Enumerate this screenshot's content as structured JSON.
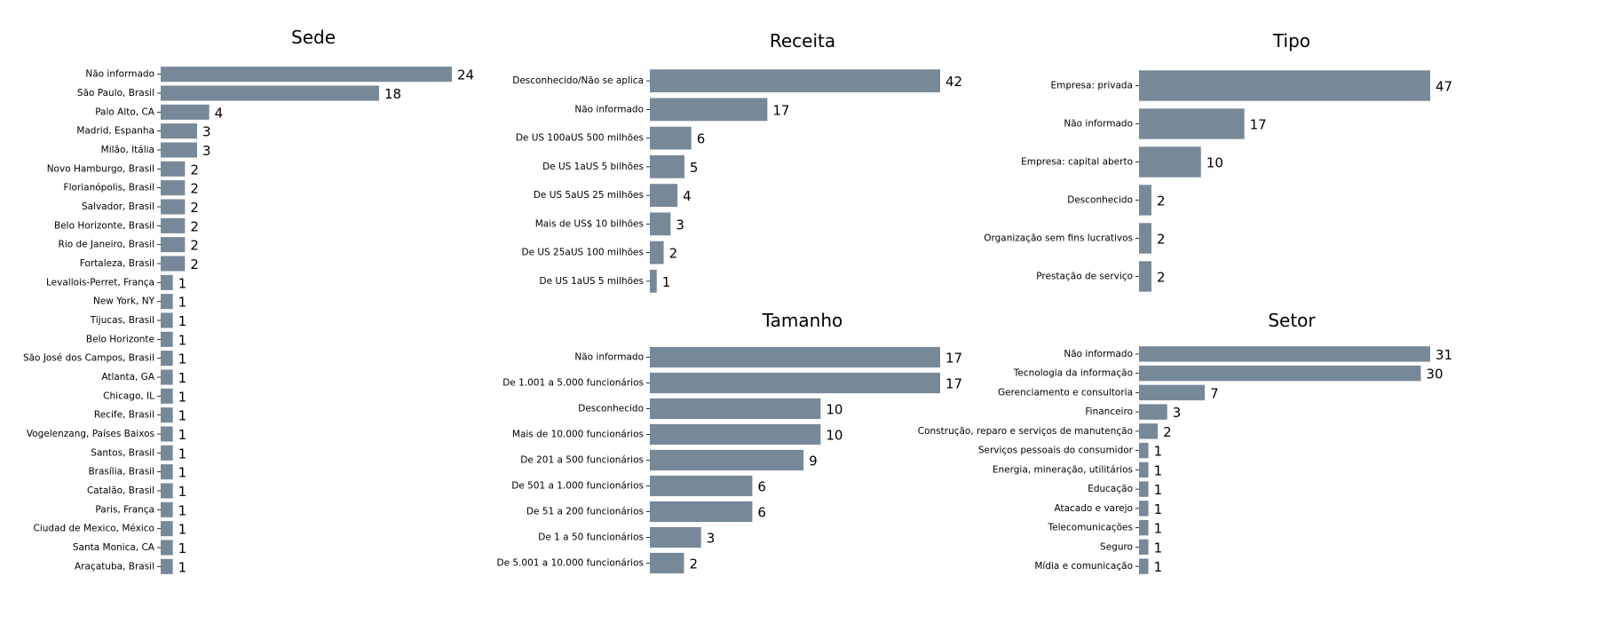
{
  "style": {
    "bar_color": "#778899",
    "text_color": "#000000",
    "background": "#ffffff"
  },
  "chart_data": [
    {
      "type": "bar",
      "orientation": "horizontal",
      "title": "Sede",
      "categories": [
        "Não informado",
        "São Paulo, Brasil",
        "Palo Alto, CA",
        "Madrid, Espanha",
        "Milão, Itália",
        "Novo Hamburgo, Brasil",
        "Florianópolis, Brasil",
        "Salvador, Brasil",
        "Belo Horizonte, Brasil",
        "Rio de Janeiro, Brasil",
        "Fortaleza, Brasil",
        "Levallois-Perret, França",
        "New York, NY",
        "Tijucas, Brasil",
        "Belo Horizonte",
        "São José dos Campos, Brasil",
        "Atlanta, GA",
        "Chicago, IL",
        "Recife, Brasil",
        "Vogelenzang, Países Baixos",
        "Santos, Brasil",
        "Brasília, Brasil",
        "Catalão, Brasil",
        "Paris, França",
        "Ciudad de Mexico, México",
        "Santa Monica, CA",
        "Araçatuba, Brasil"
      ],
      "values": [
        24,
        18,
        4,
        3,
        3,
        2,
        2,
        2,
        2,
        2,
        2,
        1,
        1,
        1,
        1,
        1,
        1,
        1,
        1,
        1,
        1,
        1,
        1,
        1,
        1,
        1,
        1
      ],
      "xlim": [
        0,
        24
      ],
      "data_labels": true,
      "x_axis_visible": false
    },
    {
      "type": "bar",
      "orientation": "horizontal",
      "title": "Receita",
      "categories": [
        "Desconhecido/Não se aplica",
        "Não informado",
        "De US 100aUS 500 milhões",
        "De US 1aUS 5 bilhões",
        "De US 5aUS 25 milhões",
        "Mais de US$ 10 bilhões",
        "De US 25aUS 100 milhões",
        "De US 1aUS 5 milhões"
      ],
      "values": [
        42,
        17,
        6,
        5,
        4,
        3,
        2,
        1
      ],
      "xlim": [
        0,
        42
      ],
      "data_labels": true,
      "x_axis_visible": false
    },
    {
      "type": "bar",
      "orientation": "horizontal",
      "title": "Tipo",
      "categories": [
        "Empresa: privada",
        "Não informado",
        "Empresa: capital aberto",
        "Desconhecido",
        "Organização sem fins lucrativos",
        "Prestação de serviço"
      ],
      "values": [
        47,
        17,
        10,
        2,
        2,
        2
      ],
      "xlim": [
        0,
        47
      ],
      "data_labels": true,
      "x_axis_visible": false
    },
    {
      "type": "bar",
      "orientation": "horizontal",
      "title": "Tamanho",
      "categories": [
        "Não informado",
        "De 1.001 a 5.000 funcionários",
        "Desconhecido",
        "Mais de 10.000 funcionários",
        "De 201 a 500 funcionários",
        "De 501 a 1.000 funcionários",
        "De 51 a 200 funcionários",
        "De 1 a 50 funcionários",
        "De 5.001 a 10.000 funcionários"
      ],
      "values": [
        17,
        17,
        10,
        10,
        9,
        6,
        6,
        3,
        2
      ],
      "xlim": [
        0,
        17
      ],
      "data_labels": true,
      "x_axis_visible": false
    },
    {
      "type": "bar",
      "orientation": "horizontal",
      "title": "Setor",
      "categories": [
        "Não informado",
        "Tecnologia da informação",
        "Gerenciamento e consultoria",
        "Financeiro",
        "Construção, reparo e serviços de manutenção",
        "Serviços pessoais do consumidor",
        "Energia, mineração, utilitários",
        "Educação",
        "Atacado e varejo",
        "Telecomunicações",
        "Seguro",
        "Mídia e comunicação"
      ],
      "values": [
        31,
        30,
        7,
        3,
        2,
        1,
        1,
        1,
        1,
        1,
        1,
        1
      ],
      "xlim": [
        0,
        31
      ],
      "data_labels": true,
      "x_axis_visible": false
    }
  ]
}
